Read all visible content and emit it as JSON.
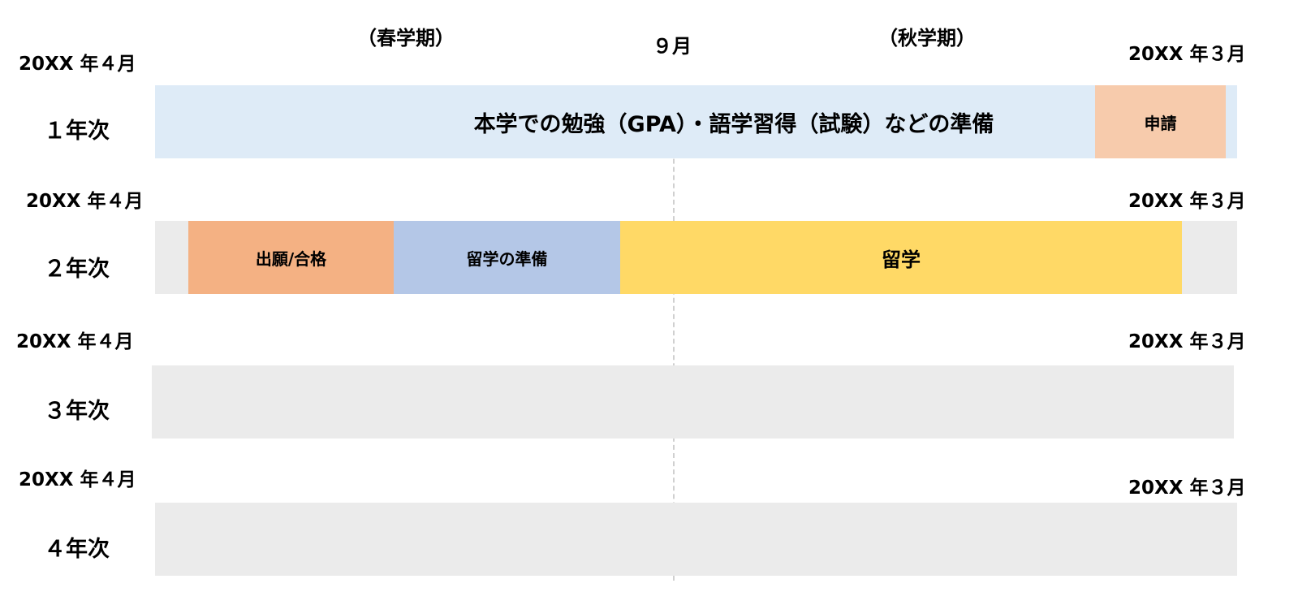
{
  "header": {
    "spring_term": "（春学期）",
    "september": "９月",
    "fall_term": "（秋学期）"
  },
  "years": [
    {
      "label": "１年次",
      "start": "20XX 年４月",
      "end": "20XX 年３月",
      "track_color": "#deebf7",
      "segments": [
        {
          "label": "本学での勉強（GPA）・語学習得（試験）などの準備",
          "color": "#deebf7"
        },
        {
          "label": "申請",
          "color": "#f7cbac"
        }
      ]
    },
    {
      "label": "２年次",
      "start": "20XX 年４月",
      "end": "20XX 年３月",
      "track_color": "#ebebeb",
      "segments": [
        {
          "label": "出願/合格",
          "color": "#f4b183"
        },
        {
          "label": "留学の準備",
          "color": "#b4c7e7"
        },
        {
          "label": "留学",
          "color": "#ffd966"
        }
      ]
    },
    {
      "label": "３年次",
      "start": "20XX 年４月",
      "end": "20XX 年３月",
      "track_color": "#ebebeb",
      "segments": []
    },
    {
      "label": "４年次",
      "start": "20XX 年４月",
      "end": "20XX 年３月",
      "track_color": "#ebebeb",
      "segments": []
    }
  ]
}
